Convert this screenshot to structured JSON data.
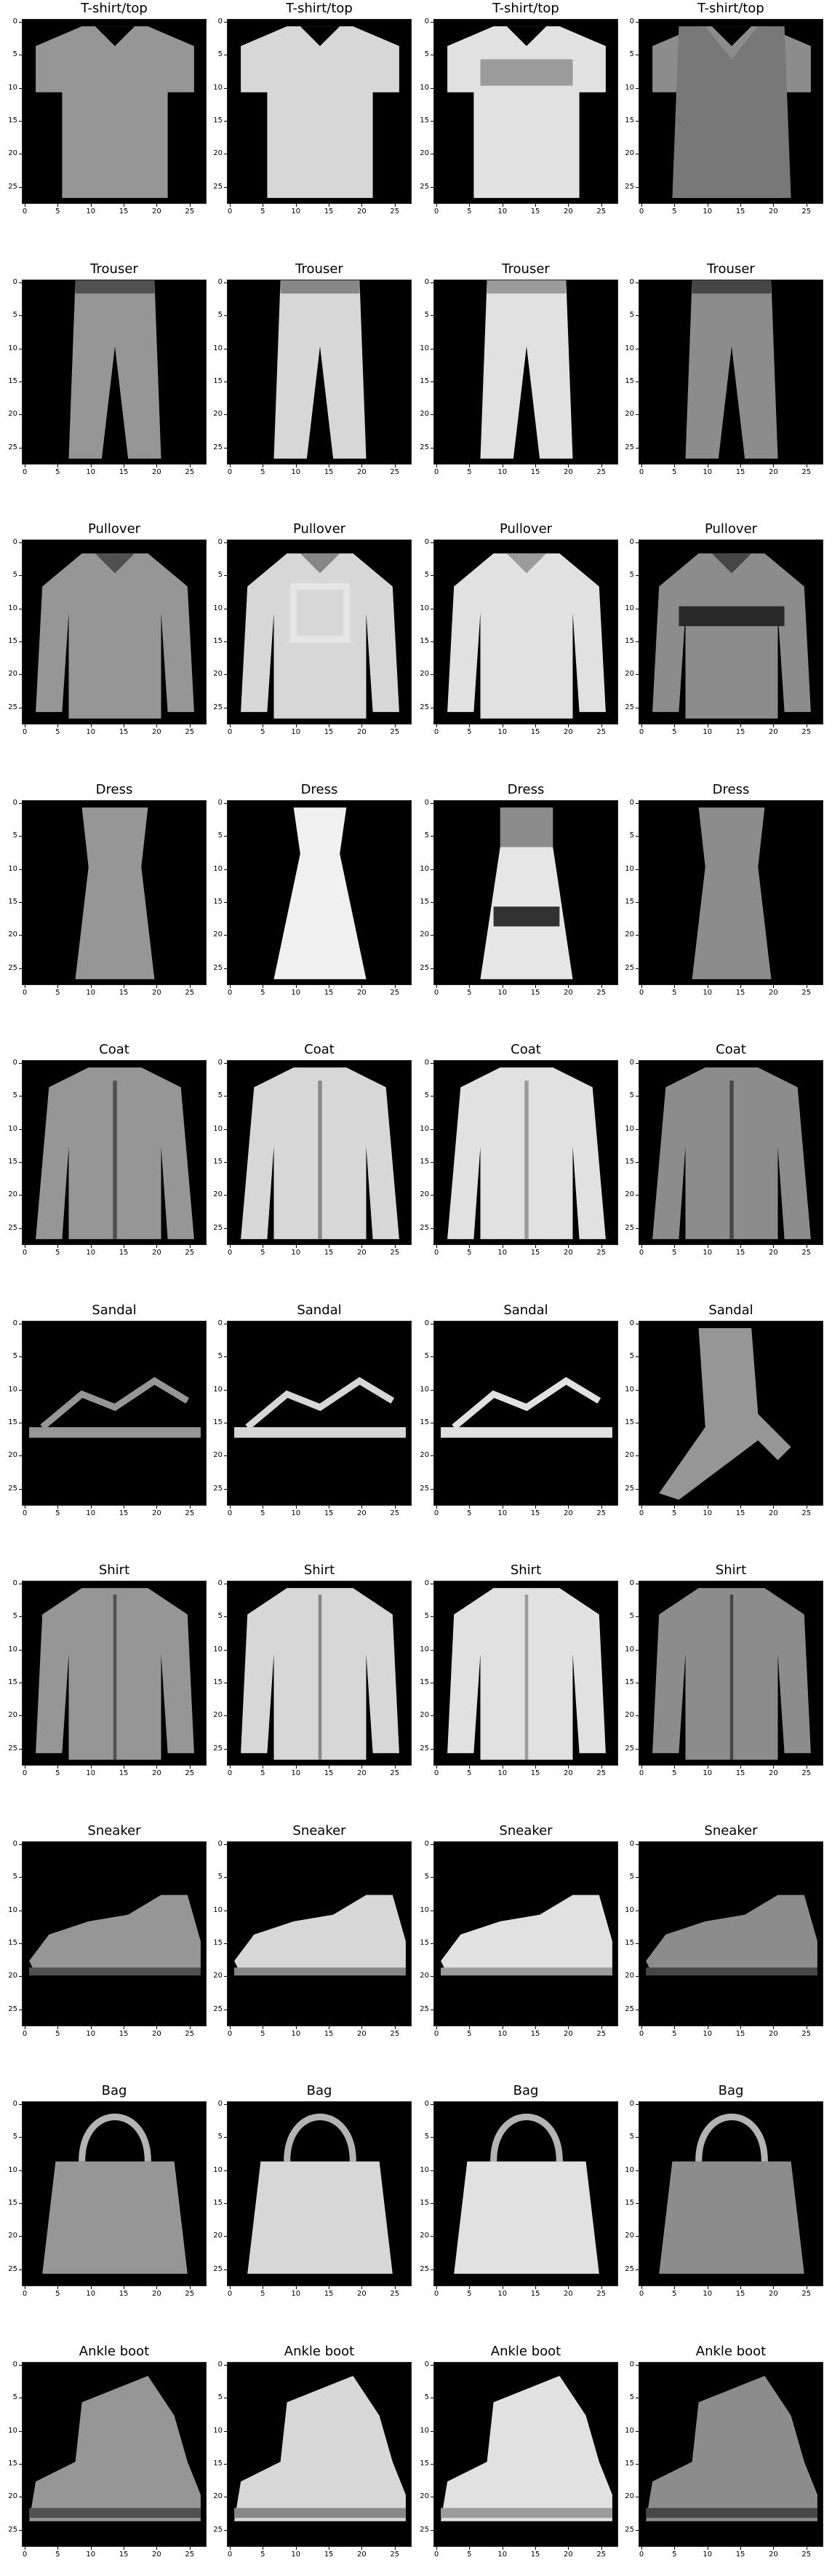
{
  "figure": {
    "rows": [
      {
        "label": "T-shirt/top",
        "kind": "tshirt"
      },
      {
        "label": "Trouser",
        "kind": "trouser"
      },
      {
        "label": "Pullover",
        "kind": "pullover"
      },
      {
        "label": "Dress",
        "kind": "dress"
      },
      {
        "label": "Coat",
        "kind": "coat"
      },
      {
        "label": "Sandal",
        "kind": "sandal"
      },
      {
        "label": "Shirt",
        "kind": "shirt"
      },
      {
        "label": "Sneaker",
        "kind": "sneaker"
      },
      {
        "label": "Bag",
        "kind": "bag"
      },
      {
        "label": "Ankle boot",
        "kind": "boot"
      }
    ],
    "columns": 4,
    "x_ticks": [
      "0",
      "5",
      "10",
      "15",
      "20",
      "25"
    ],
    "y_ticks": [
      "0",
      "5",
      "10",
      "15",
      "20",
      "25"
    ],
    "colors": {
      "image_bg": "#000000",
      "page_bg": "#ffffff"
    }
  }
}
